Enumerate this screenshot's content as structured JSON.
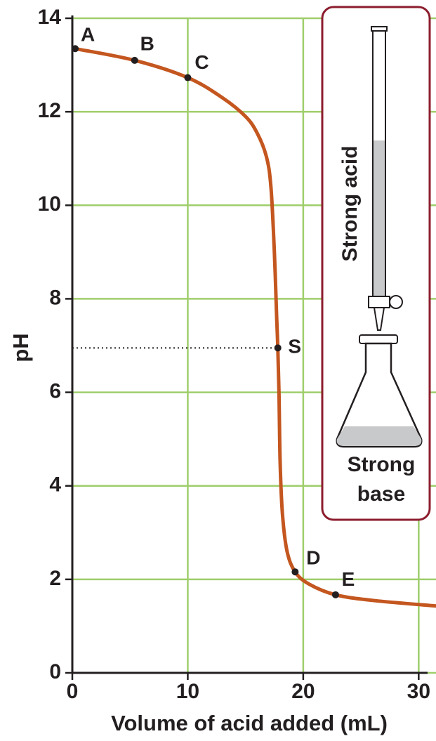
{
  "chart_data": {
    "type": "line",
    "xlabel": "Volume of acid added (mL)",
    "ylabel": "pH",
    "xlim": [
      0,
      31.5
    ],
    "ylim": [
      0,
      14
    ],
    "xticks": [
      0,
      10,
      20,
      30
    ],
    "yticks": [
      0,
      2,
      4,
      6,
      8,
      10,
      12,
      14
    ],
    "grid": true,
    "grid_color": "#9fce6b",
    "series": [
      {
        "color": "#c4561f",
        "x": [
          0.25,
          5.4,
          10,
          13,
          15,
          16,
          16.8,
          17.2,
          17.5,
          17.7,
          17.8,
          17.9,
          18,
          18.2,
          18.6,
          19.3,
          20.5,
          22.8,
          26,
          31.5
        ],
        "values": [
          13.35,
          13.1,
          12.73,
          12.3,
          11.9,
          11.55,
          11.05,
          10.4,
          9.0,
          7.6,
          6.95,
          6.0,
          4.5,
          3.4,
          2.6,
          2.16,
          1.9,
          1.67,
          1.55,
          1.43
        ]
      }
    ],
    "points": [
      {
        "label": "A",
        "x": 0.25,
        "y": 13.35
      },
      {
        "label": "B",
        "x": 5.4,
        "y": 13.1
      },
      {
        "label": "C",
        "x": 10,
        "y": 12.73
      },
      {
        "label": "S",
        "x": 17.8,
        "y": 6.95
      },
      {
        "label": "D",
        "x": 19.3,
        "y": 2.16
      },
      {
        "label": "E",
        "x": 22.8,
        "y": 1.67
      }
    ],
    "inset": {
      "burette_label": "Strong acid",
      "flask_label": [
        "Strong",
        "base"
      ]
    }
  }
}
